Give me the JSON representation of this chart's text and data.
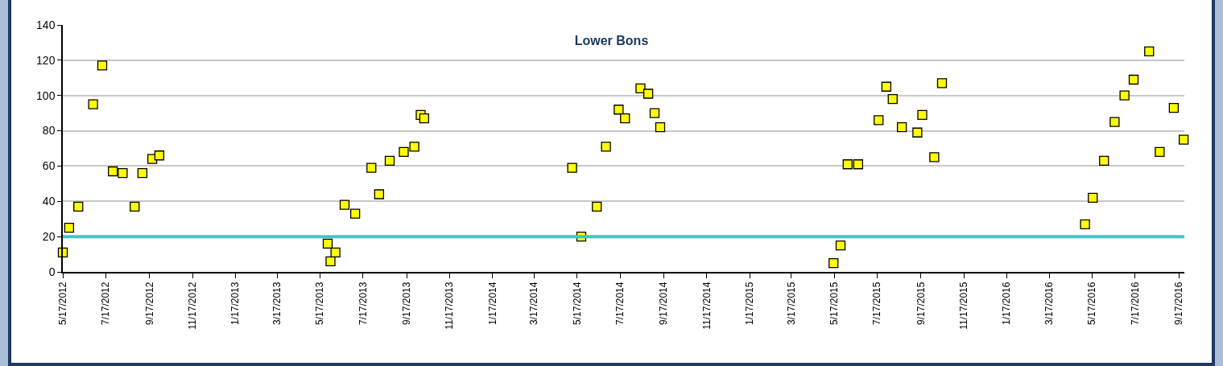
{
  "chart_data": {
    "type": "scatter",
    "title": "Lower Bons",
    "marker": "square",
    "grid": "y",
    "x": [
      "2012-05-17",
      "2012-05-26",
      "2012-06-08",
      "2012-06-29",
      "2012-07-12",
      "2012-07-27",
      "2012-08-10",
      "2012-08-27",
      "2012-09-07",
      "2012-09-21",
      "2012-10-01",
      "2013-05-28",
      "2013-06-01",
      "2013-06-08",
      "2013-06-21",
      "2013-07-06",
      "2013-07-29",
      "2013-08-09",
      "2013-08-24",
      "2013-09-13",
      "2013-09-28",
      "2013-10-07",
      "2013-10-12",
      "2014-05-10",
      "2014-05-23",
      "2014-06-14",
      "2014-06-27",
      "2014-07-15",
      "2014-07-24",
      "2014-08-15",
      "2014-08-26",
      "2014-09-04",
      "2014-09-12",
      "2015-05-16",
      "2015-05-26",
      "2015-06-05",
      "2015-06-20",
      "2015-07-19",
      "2015-07-30",
      "2015-08-08",
      "2015-08-21",
      "2015-09-12",
      "2015-09-19",
      "2015-10-06",
      "2015-10-17",
      "2016-05-07",
      "2016-05-18",
      "2016-06-03",
      "2016-06-18",
      "2016-07-02",
      "2016-07-15",
      "2016-08-06",
      "2016-08-21",
      "2016-09-10",
      "2016-09-24"
    ],
    "series": [
      {
        "color": "#ffff00",
        "values": [
          11,
          25,
          37,
          95,
          117,
          57,
          56,
          37,
          56,
          64,
          66,
          16,
          6,
          11,
          38,
          33,
          59,
          44,
          63,
          68,
          71,
          89,
          87,
          59,
          20,
          37,
          71,
          92,
          87,
          104,
          101,
          90,
          82,
          5,
          15,
          61,
          61,
          86,
          105,
          98,
          82,
          79,
          89,
          65,
          107,
          27,
          42,
          63,
          85,
          100,
          109,
          125,
          68,
          93,
          75
        ]
      }
    ],
    "ref_lines": [
      {
        "axis": "y",
        "value": 20,
        "color": "#33cccc"
      }
    ],
    "ylim": [
      0,
      140
    ],
    "yticks": [
      0,
      20,
      40,
      60,
      80,
      100,
      120,
      140
    ],
    "xlim": [
      "2012-05-17",
      "2016-09-25"
    ],
    "xticks": [
      {
        "value": "2012-05-17",
        "label": "5/17/2012"
      },
      {
        "value": "2012-07-17",
        "label": "7/17/2012"
      },
      {
        "value": "2012-09-17",
        "label": "9/17/2012"
      },
      {
        "value": "2012-11-17",
        "label": "11/17/2012"
      },
      {
        "value": "2013-01-17",
        "label": "1/17/2013"
      },
      {
        "value": "2013-03-17",
        "label": "3/17/2013"
      },
      {
        "value": "2013-05-17",
        "label": "5/17/2013"
      },
      {
        "value": "2013-07-17",
        "label": "7/17/2013"
      },
      {
        "value": "2013-09-17",
        "label": "9/17/2013"
      },
      {
        "value": "2013-11-17",
        "label": "11/17/2013"
      },
      {
        "value": "2014-01-17",
        "label": "1/17/2014"
      },
      {
        "value": "2014-03-17",
        "label": "3/17/2014"
      },
      {
        "value": "2014-05-17",
        "label": "5/17/2014"
      },
      {
        "value": "2014-07-17",
        "label": "7/17/2014"
      },
      {
        "value": "2014-09-17",
        "label": "9/17/2014"
      },
      {
        "value": "2014-11-17",
        "label": "11/17/2014"
      },
      {
        "value": "2015-01-17",
        "label": "1/17/2015"
      },
      {
        "value": "2015-03-17",
        "label": "3/17/2015"
      },
      {
        "value": "2015-05-17",
        "label": "5/17/2015"
      },
      {
        "value": "2015-07-17",
        "label": "7/17/2015"
      },
      {
        "value": "2015-09-17",
        "label": "9/17/2015"
      },
      {
        "value": "2015-11-17",
        "label": "11/17/2015"
      },
      {
        "value": "2016-01-17",
        "label": "1/17/2016"
      },
      {
        "value": "2016-03-17",
        "label": "3/17/2016"
      },
      {
        "value": "2016-05-17",
        "label": "5/17/2016"
      },
      {
        "value": "2016-07-17",
        "label": "7/17/2016"
      },
      {
        "value": "2016-09-17",
        "label": "9/17/2016"
      }
    ]
  }
}
